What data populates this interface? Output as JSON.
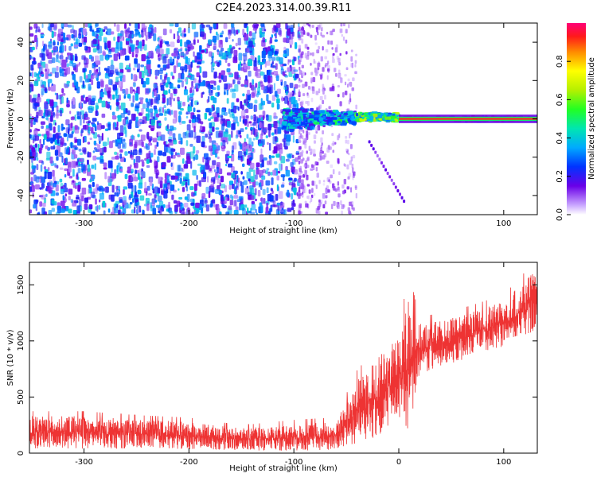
{
  "title": "C2E4.2023.314.00.39.R11",
  "chart_data": [
    {
      "type": "heatmap",
      "xlabel": "Height of straight line (km)",
      "ylabel": "Frequency (Hz)",
      "xlim": [
        -352,
        132
      ],
      "ylim": [
        -50,
        50
      ],
      "x_ticks": [
        -300,
        -200,
        -100,
        0,
        100
      ],
      "y_ticks": [
        -40,
        -20,
        0,
        20,
        40
      ],
      "colorbar": {
        "label": "Normalized spectral amplitude",
        "range": [
          0,
          1
        ],
        "ticks": [
          0.0,
          0.2,
          0.4,
          0.6,
          0.8
        ]
      },
      "features": {
        "noise_region_km": [
          -352,
          -95
        ],
        "noise_level": [
          0.2,
          0.35
        ],
        "sparse_region_km": [
          -95,
          -40
        ],
        "signal_start_km": -110,
        "signal_line_hz": 0,
        "signal_segments": [
          {
            "x": [
              -110,
              -80
            ],
            "y": [
              -5,
              5
            ],
            "level": 0.45
          },
          {
            "x": [
              -80,
              -40
            ],
            "y": [
              -3,
              4
            ],
            "level": 0.5
          },
          {
            "x": [
              -40,
              0
            ],
            "y": [
              -1,
              3
            ],
            "level": 0.65
          },
          {
            "x": [
              0,
              132
            ],
            "y": [
              -1,
              1
            ],
            "level": 0.9
          }
        ],
        "faint_streak": {
          "x": [
            -28,
            5
          ],
          "y": [
            -12,
            -43
          ]
        }
      },
      "grid": false
    },
    {
      "type": "line",
      "xlabel": "Height of straight line (km)",
      "ylabel": "SNR (10 * v/v)",
      "xlim": [
        -352,
        132
      ],
      "ylim": [
        0,
        1700
      ],
      "x_ticks": [
        -300,
        -200,
        -100,
        0,
        100
      ],
      "y_ticks": [
        0,
        500,
        1000,
        1500
      ],
      "color": "#ee3333",
      "series": [
        {
          "x": [
            -352,
            -300,
            -250,
            -200,
            -150,
            -100,
            -60,
            -40,
            -20,
            0,
            10,
            20,
            50,
            100,
            132
          ],
          "y_low": [
            40,
            40,
            40,
            35,
            25,
            20,
            20,
            80,
            150,
            300,
            200,
            700,
            800,
            950,
            1100
          ],
          "y_high": [
            330,
            330,
            300,
            280,
            220,
            260,
            280,
            650,
            850,
            1050,
            1400,
            1150,
            1200,
            1350,
            1650
          ]
        }
      ],
      "grid": false
    }
  ]
}
